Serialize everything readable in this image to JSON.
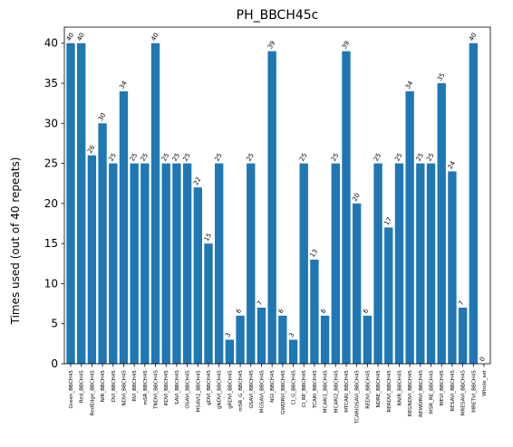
{
  "chart_data": {
    "type": "bar",
    "title": "PH_BBCH45c",
    "xlabel": "",
    "ylabel": "Times used (out of 40 repeats)",
    "ylim": [
      0,
      42
    ],
    "yticks": [
      0,
      5,
      10,
      15,
      20,
      25,
      30,
      35,
      40
    ],
    "grid": false,
    "bar_color": "#1f77b4",
    "categories": [
      "Green_BBCH45",
      "Red_BBCH45",
      "RedEdge_BBCH45",
      "NIR_BBCH45",
      "DVI_BBCH45",
      "NDVI_BBCH45",
      "RVI_BBCH45",
      "mSR_BBCH45",
      "TNDVI_BBCH45",
      "RDVI_BBCH45",
      "SAVI_BBCH45",
      "OSAVI_BBCH45",
      "MSAVI2_BBCH45",
      "gDVI_BBCH45",
      "gNDVI_BBCH45",
      "gRDVI_BBCH45",
      "mSR_G_BBCH45",
      "GSAVI_BBCH45",
      "MGSAVI_BBCH45",
      "NGI_BBCH45",
      "GWDRVI_BBCH45",
      "CI_G_BBCH45",
      "CI_RE_BBCH45",
      "TCARI_BBCH45",
      "MCARI1_BBCH45",
      "MCARI2_BBCH45",
      "MTCARI_BBCH45",
      "TCARIOSAVI_BBCH45",
      "REDVI_BBCH45",
      "NDRE_BBCH45",
      "RERDVI_BBCH45",
      "NNIR_BBCH45",
      "REGNDVI_BBCH45",
      "REWDRVI_BBCH45",
      "MSR_RE_BBCH45",
      "MEVI_BBCH45",
      "RESAVI_BBCH45",
      "MRESAVI_BBCH45",
      "MRETVI_BBCH45",
      "Whole_set"
    ],
    "values": [
      40,
      40,
      26,
      30,
      25,
      34,
      25,
      25,
      40,
      25,
      25,
      25,
      22,
      15,
      25,
      3,
      6,
      25,
      7,
      39,
      6,
      3,
      25,
      13,
      6,
      25,
      39,
      20,
      6,
      25,
      17,
      25,
      34,
      25,
      25,
      35,
      24,
      7,
      40,
      0
    ]
  }
}
